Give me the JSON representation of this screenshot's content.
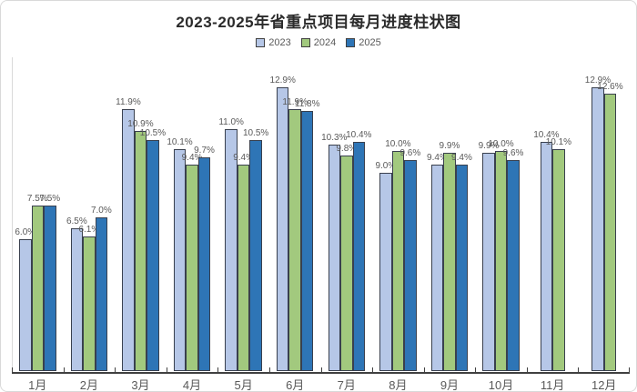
{
  "chart_data": {
    "type": "bar",
    "title": "2023-2025年省重点项目每月进度柱状图",
    "categories": [
      "1月",
      "2月",
      "3月",
      "4月",
      "5月",
      "6月",
      "7月",
      "8月",
      "9月",
      "10月",
      "11月",
      "12月"
    ],
    "series": [
      {
        "name": "2023",
        "color": "#b6c7e7",
        "values": [
          6.0,
          6.5,
          11.9,
          10.1,
          11.0,
          12.9,
          10.3,
          9.0,
          9.4,
          9.9,
          10.4,
          12.9
        ]
      },
      {
        "name": "2024",
        "color": "#a2c97e",
        "values": [
          7.5,
          6.1,
          10.9,
          9.4,
          9.4,
          11.9,
          9.8,
          10.0,
          9.9,
          10.0,
          10.1,
          12.6
        ]
      },
      {
        "name": "2025",
        "color": "#2e75b6",
        "values": [
          7.5,
          7.0,
          10.5,
          9.7,
          10.5,
          11.8,
          10.4,
          9.6,
          9.4,
          9.6,
          null,
          null
        ]
      }
    ],
    "value_suffix": "%",
    "ylim": [
      0,
      13.5
    ],
    "grid": false,
    "legend_position": "top",
    "xlabel": "",
    "ylabel": "",
    "colors": {
      "axis": "#404040",
      "y_axis_line": "#d9d9d9",
      "bar_border": "#39404e",
      "label_text": "#595959",
      "title_text": "#2b2b2b"
    }
  }
}
